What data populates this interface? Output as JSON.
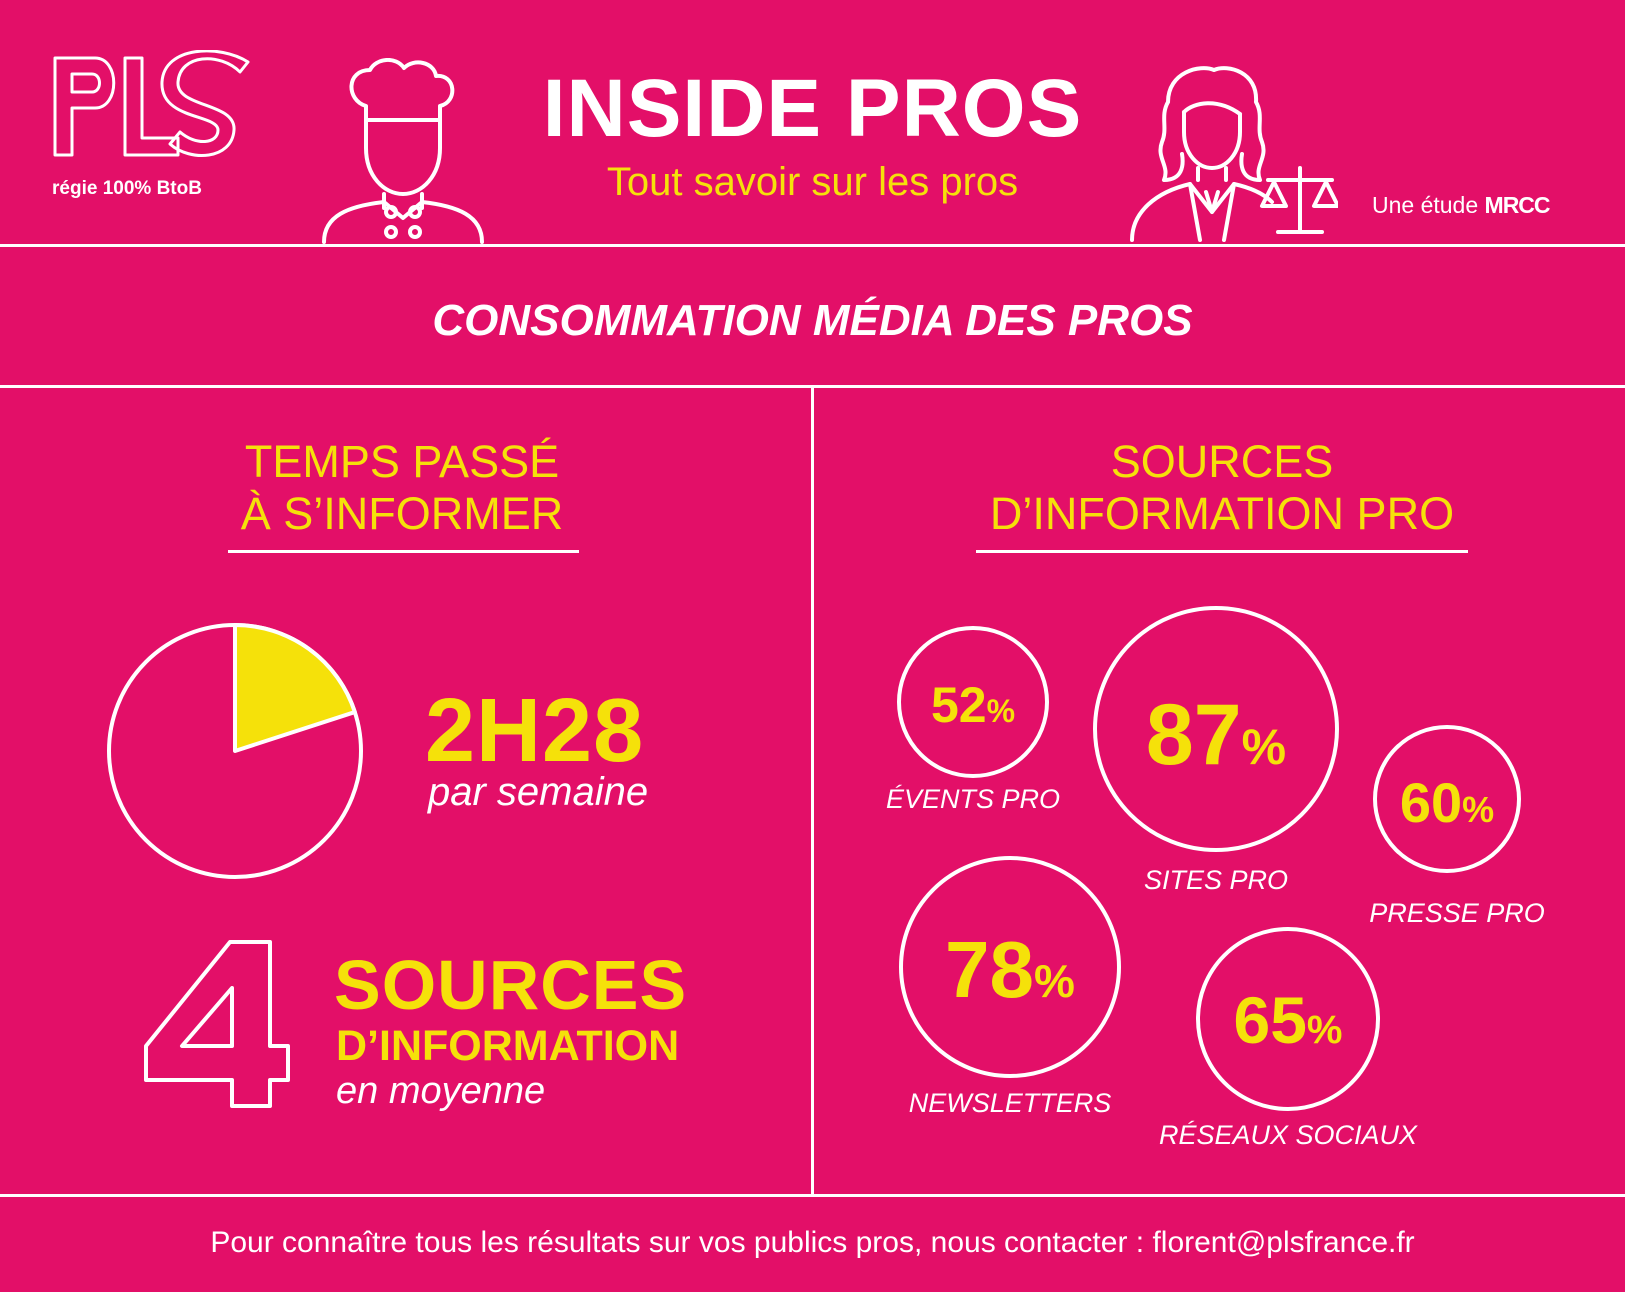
{
  "header": {
    "logo_text": "PLS",
    "logo_tagline": "régie 100% BtoB",
    "title": "INSIDE PROS",
    "subtitle": "Tout savoir sur les pros",
    "study_prefix": "Une étude",
    "study_brand": "MRCC"
  },
  "section_title": "CONSOMMATION MÉDIA DES PROS",
  "left_panel": {
    "heading_line1": "TEMPS PASSÉ",
    "heading_line2": "À S’INFORMER",
    "pie_fraction": 0.2,
    "time_value": "2H28",
    "time_unit": "par semaine",
    "sources_number": "4",
    "sources_line1": "SOURCES",
    "sources_line2": "D’INFORMATION",
    "sources_line3": "en moyenne"
  },
  "right_panel": {
    "heading_line1": "SOURCES",
    "heading_line2": "D’INFORMATION PRO",
    "items": [
      {
        "value": "52",
        "unit": "%",
        "label": "ÉVENTS PRO"
      },
      {
        "value": "87",
        "unit": "%",
        "label": "SITES PRO"
      },
      {
        "value": "60",
        "unit": "%",
        "label": "PRESSE PRO"
      },
      {
        "value": "78",
        "unit": "%",
        "label": "NEWSLETTERS"
      },
      {
        "value": "65",
        "unit": "%",
        "label": "RÉSEAUX SOCIAUX"
      }
    ]
  },
  "footer": "Pour connaître tous les résultats sur vos publics pros, nous contacter : florent@plsfrance.fr",
  "colors": {
    "background": "#E30F68",
    "accent": "#F5E10A",
    "line": "#FFFFFF"
  },
  "icons": [
    "chef-icon",
    "judge-icon"
  ]
}
